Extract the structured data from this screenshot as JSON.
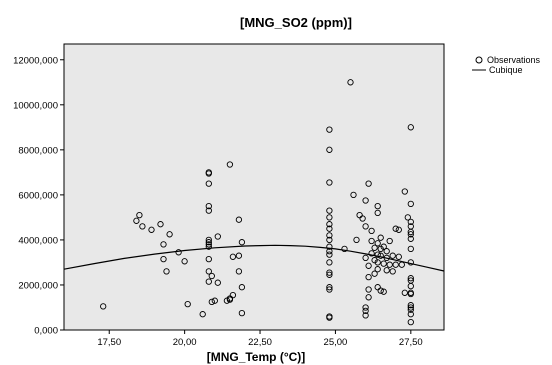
{
  "chart_data": {
    "type": "scatter",
    "title": "[MNG_SO2 (ppm)]",
    "xlabel": "[MNG_Temp (°C)]",
    "ylabel": "",
    "xlim": [
      16.0,
      28.6
    ],
    "ylim": [
      0,
      12700000
    ],
    "x_ticks": [
      17.5,
      20.0,
      22.5,
      25.0,
      27.5
    ],
    "x_tick_labels": [
      "17,50",
      "20,00",
      "22,50",
      "25,00",
      "27,50"
    ],
    "y_ticks": [
      0,
      2000000,
      4000000,
      6000000,
      8000000,
      10000000,
      12000000
    ],
    "y_tick_labels": [
      "0,000",
      "2000,000",
      "4000,000",
      "6000,000",
      "8000,000",
      "10000,000",
      "12000,000"
    ],
    "grid": false,
    "legend_position": "top-right",
    "background_color": "#e8e8e8",
    "series": [
      {
        "name": "Observations",
        "kind": "points",
        "color": "#000000",
        "points": [
          [
            17.3,
            1050000
          ],
          [
            18.5,
            5100000
          ],
          [
            18.4,
            4850000
          ],
          [
            18.6,
            4600000
          ],
          [
            18.9,
            4450000
          ],
          [
            19.2,
            4700000
          ],
          [
            19.5,
            4250000
          ],
          [
            19.3,
            3800000
          ],
          [
            19.8,
            3450000
          ],
          [
            19.3,
            3150000
          ],
          [
            20.0,
            3050000
          ],
          [
            19.4,
            2600000
          ],
          [
            20.1,
            1150000
          ],
          [
            20.6,
            700000
          ],
          [
            20.9,
            1250000
          ],
          [
            21.0,
            1300000
          ],
          [
            20.8,
            3900000
          ],
          [
            20.8,
            4000000
          ],
          [
            20.8,
            3800000
          ],
          [
            20.8,
            3700000
          ],
          [
            20.8,
            3150000
          ],
          [
            20.8,
            2600000
          ],
          [
            20.8,
            2150000
          ],
          [
            20.9,
            2400000
          ],
          [
            21.1,
            2100000
          ],
          [
            21.1,
            4150000
          ],
          [
            20.8,
            5500000
          ],
          [
            20.8,
            5300000
          ],
          [
            20.8,
            7000000
          ],
          [
            20.8,
            6950000
          ],
          [
            20.8,
            6500000
          ],
          [
            21.5,
            7350000
          ],
          [
            21.8,
            4900000
          ],
          [
            21.9,
            3900000
          ],
          [
            21.8,
            3300000
          ],
          [
            21.6,
            3250000
          ],
          [
            21.8,
            2600000
          ],
          [
            21.9,
            1900000
          ],
          [
            21.6,
            1550000
          ],
          [
            21.5,
            1400000
          ],
          [
            21.4,
            1300000
          ],
          [
            21.5,
            1350000
          ],
          [
            21.9,
            750000
          ],
          [
            24.8,
            8900000
          ],
          [
            24.8,
            8000000
          ],
          [
            24.8,
            6550000
          ],
          [
            24.8,
            5300000
          ],
          [
            24.8,
            5000000
          ],
          [
            24.8,
            4700000
          ],
          [
            24.8,
            4500000
          ],
          [
            24.8,
            4200000
          ],
          [
            24.8,
            4000000
          ],
          [
            24.8,
            3700000
          ],
          [
            24.8,
            3500000
          ],
          [
            24.8,
            3350000
          ],
          [
            24.8,
            3000000
          ],
          [
            24.8,
            2550000
          ],
          [
            24.8,
            2450000
          ],
          [
            24.8,
            1900000
          ],
          [
            24.8,
            1800000
          ],
          [
            24.8,
            600000
          ],
          [
            24.8,
            550000
          ],
          [
            25.3,
            3600000
          ],
          [
            25.5,
            11000000
          ],
          [
            25.6,
            6000000
          ],
          [
            25.8,
            5100000
          ],
          [
            25.9,
            4950000
          ],
          [
            25.7,
            4000000
          ],
          [
            26.1,
            6500000
          ],
          [
            26.0,
            5750000
          ],
          [
            26.4,
            5500000
          ],
          [
            26.4,
            5200000
          ],
          [
            26.0,
            4600000
          ],
          [
            26.2,
            4400000
          ],
          [
            26.5,
            4100000
          ],
          [
            26.2,
            3950000
          ],
          [
            26.4,
            3850000
          ],
          [
            26.6,
            3700000
          ],
          [
            26.3,
            3650000
          ],
          [
            26.5,
            3600000
          ],
          [
            26.7,
            3500000
          ],
          [
            26.2,
            3400000
          ],
          [
            26.4,
            3350000
          ],
          [
            26.5,
            3300000
          ],
          [
            26.7,
            3200000
          ],
          [
            26.0,
            3200000
          ],
          [
            26.3,
            3100000
          ],
          [
            26.4,
            3000000
          ],
          [
            26.6,
            2950000
          ],
          [
            26.8,
            2900000
          ],
          [
            27.0,
            2900000
          ],
          [
            26.1,
            2850000
          ],
          [
            26.4,
            2700000
          ],
          [
            26.7,
            2650000
          ],
          [
            26.9,
            2600000
          ],
          [
            26.3,
            2500000
          ],
          [
            26.1,
            2350000
          ],
          [
            26.4,
            1900000
          ],
          [
            26.5,
            1750000
          ],
          [
            26.6,
            1700000
          ],
          [
            26.1,
            1800000
          ],
          [
            26.1,
            1450000
          ],
          [
            26.0,
            1000000
          ],
          [
            26.0,
            850000
          ],
          [
            26.0,
            650000
          ],
          [
            26.8,
            3950000
          ],
          [
            26.9,
            3300000
          ],
          [
            27.0,
            4500000
          ],
          [
            27.1,
            4450000
          ],
          [
            27.1,
            3250000
          ],
          [
            27.2,
            2900000
          ],
          [
            27.3,
            6150000
          ],
          [
            27.4,
            5000000
          ],
          [
            27.5,
            9000000
          ],
          [
            27.5,
            5600000
          ],
          [
            27.5,
            4800000
          ],
          [
            27.5,
            4600000
          ],
          [
            27.5,
            4350000
          ],
          [
            27.5,
            4250000
          ],
          [
            27.5,
            4050000
          ],
          [
            27.5,
            3600000
          ],
          [
            27.5,
            3000000
          ],
          [
            27.5,
            2300000
          ],
          [
            27.5,
            2200000
          ],
          [
            27.5,
            1950000
          ],
          [
            27.5,
            1650000
          ],
          [
            27.5,
            1600000
          ],
          [
            27.5,
            1100000
          ],
          [
            27.5,
            1000000
          ],
          [
            27.5,
            900000
          ],
          [
            27.5,
            700000
          ],
          [
            27.5,
            350000
          ],
          [
            27.3,
            1650000
          ]
        ]
      },
      {
        "name": "Cubique",
        "kind": "line",
        "color": "#000000",
        "points": [
          [
            16.0,
            2700000
          ],
          [
            17.0,
            2950000
          ],
          [
            18.0,
            3180000
          ],
          [
            19.0,
            3370000
          ],
          [
            20.0,
            3530000
          ],
          [
            21.0,
            3650000
          ],
          [
            22.0,
            3730000
          ],
          [
            22.5,
            3750000
          ],
          [
            23.0,
            3760000
          ],
          [
            23.5,
            3750000
          ],
          [
            24.0,
            3720000
          ],
          [
            24.5,
            3670000
          ],
          [
            25.0,
            3600000
          ],
          [
            25.5,
            3500000
          ],
          [
            26.0,
            3380000
          ],
          [
            26.5,
            3250000
          ],
          [
            27.0,
            3100000
          ],
          [
            27.5,
            2950000
          ],
          [
            28.0,
            2800000
          ],
          [
            28.6,
            2620000
          ]
        ]
      }
    ]
  }
}
